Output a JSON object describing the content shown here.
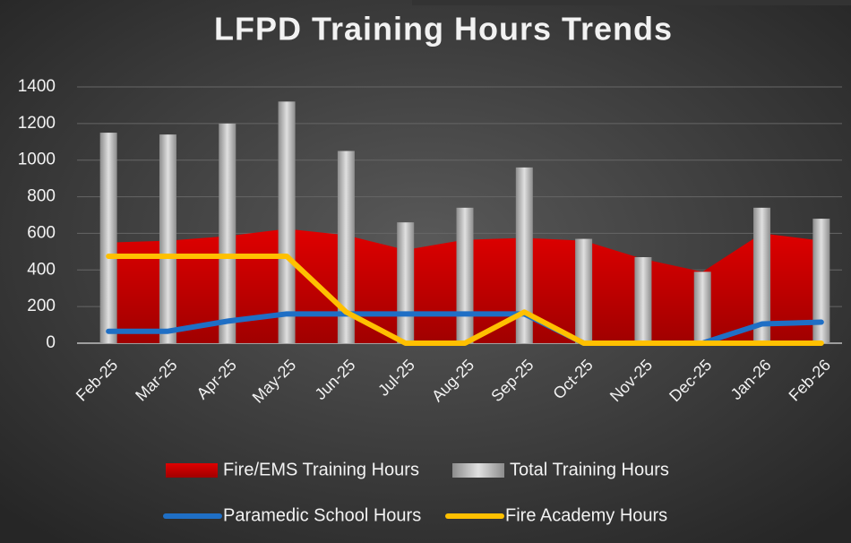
{
  "chart_data": {
    "type": "combo",
    "title": "LFPD Training Hours Trends",
    "categories": [
      "Feb-25",
      "Mar-25",
      "Apr-25",
      "May-25",
      "Jun-25",
      "Jul-25",
      "Aug-25",
      "Sep-25",
      "Oct-25",
      "Nov-25",
      "Dec-25",
      "Jan-26",
      "Feb-26"
    ],
    "series": [
      {
        "name": "Fire/EMS Training Hours",
        "type": "area",
        "color": "#c00000",
        "values": [
          550,
          560,
          585,
          625,
          590,
          510,
          565,
          575,
          560,
          460,
          390,
          600,
          560
        ]
      },
      {
        "name": "Total Training Hours",
        "type": "bar",
        "color": "#bfbfbf",
        "values": [
          1150,
          1140,
          1200,
          1320,
          1050,
          660,
          740,
          960,
          570,
          470,
          390,
          740,
          680
        ]
      },
      {
        "name": "Paramedic School Hours",
        "type": "line",
        "color": "#1f6fc5",
        "values": [
          65,
          65,
          120,
          160,
          160,
          160,
          160,
          160,
          0,
          0,
          0,
          105,
          115
        ]
      },
      {
        "name": "Fire Academy Hours",
        "type": "line",
        "color": "#ffc000",
        "values": [
          475,
          475,
          475,
          475,
          170,
          0,
          0,
          170,
          0,
          0,
          0,
          0,
          0
        ]
      }
    ],
    "ylim": [
      0,
      1400
    ],
    "yticks": [
      0,
      200,
      400,
      600,
      800,
      1000,
      1200,
      1400
    ],
    "grid": true
  }
}
